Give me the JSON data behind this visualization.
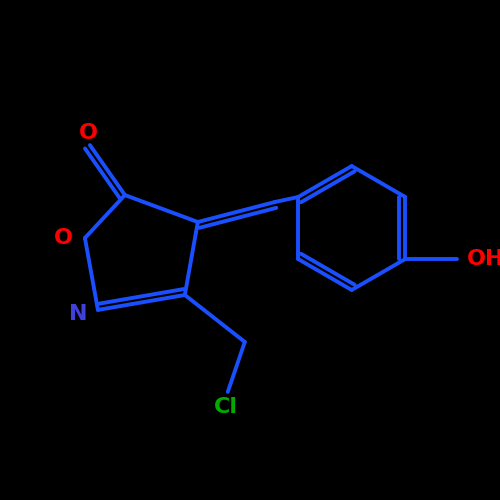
{
  "bg_color": "#000000",
  "bond_color": "#1a4fff",
  "bond_width": 2.8,
  "O_color": "#ff0000",
  "N_color": "#4040dd",
  "Cl_color": "#00aa00",
  "font_size": 16,
  "fig_size": [
    5.0,
    5.0
  ],
  "dpi": 100,
  "xlim": [
    0.2,
    4.8
  ],
  "ylim": [
    0.5,
    4.5
  ]
}
